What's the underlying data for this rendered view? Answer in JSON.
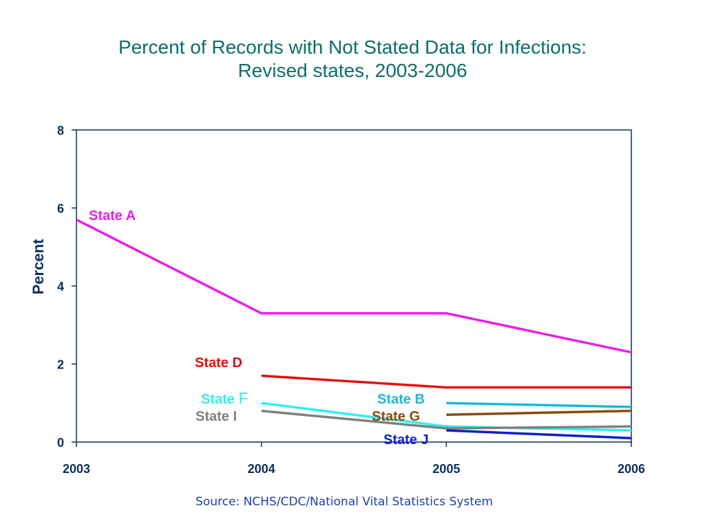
{
  "chart_data": {
    "type": "line",
    "title_lines": [
      "Percent of Records with Not Stated Data for Infections:",
      "Revised states, 2003-2006"
    ],
    "ylabel": "Percent",
    "xlabel": "",
    "x": [
      2003,
      2004,
      2005,
      2006
    ],
    "x_tick_labels": [
      "2003",
      "2004",
      "2005",
      "2006"
    ],
    "y_ticks": [
      0,
      2,
      4,
      6,
      8
    ],
    "ylim": [
      0,
      8
    ],
    "xlim": [
      2003,
      2006
    ],
    "grid": false,
    "legend": "direct labels",
    "series": [
      {
        "name": "State A",
        "color": "#e81ee8",
        "x": [
          2003,
          2004,
          2005,
          2006
        ],
        "y": [
          5.7,
          3.3,
          3.3,
          2.3
        ]
      },
      {
        "name": "State D",
        "color": "#e01010",
        "x": [
          2004,
          2005,
          2006
        ],
        "y": [
          1.7,
          1.4,
          1.4
        ]
      },
      {
        "name": "State F",
        "color": "#2ef0f0",
        "x": [
          2004,
          2005,
          2006
        ],
        "y": [
          1.0,
          0.4,
          0.3
        ]
      },
      {
        "name": "State I",
        "color": "#808080",
        "x": [
          2004,
          2005,
          2006
        ],
        "y": [
          0.8,
          0.35,
          0.4
        ]
      },
      {
        "name": "State B",
        "color": "#1ab8e0",
        "x": [
          2005,
          2006
        ],
        "y": [
          1.0,
          0.9
        ]
      },
      {
        "name": "State G",
        "color": "#8b4a10",
        "x": [
          2005,
          2006
        ],
        "y": [
          0.7,
          0.8
        ]
      },
      {
        "name": "State J",
        "color": "#1020c8",
        "x": [
          2005,
          2006
        ],
        "y": [
          0.3,
          0.1
        ]
      }
    ]
  },
  "series_labels": [
    {
      "parts": [
        "State ",
        "F"
      ],
      "color": "#2ef0f0"
    },
    {
      "parts": [
        "State A"
      ],
      "color": "#e81ee8"
    },
    {
      "parts": [
        "State D"
      ],
      "color": "#e01010"
    },
    {
      "parts": [
        "State I"
      ],
      "color": "#808080"
    },
    {
      "parts": [
        "State B"
      ],
      "color": "#1ab8e0"
    },
    {
      "parts": [
        "State G"
      ],
      "color": "#8b4a10"
    },
    {
      "parts": [
        "State J"
      ],
      "color": "#1020c8"
    }
  ],
  "source": "Source: NCHS/CDC/National Vital Statistics System"
}
